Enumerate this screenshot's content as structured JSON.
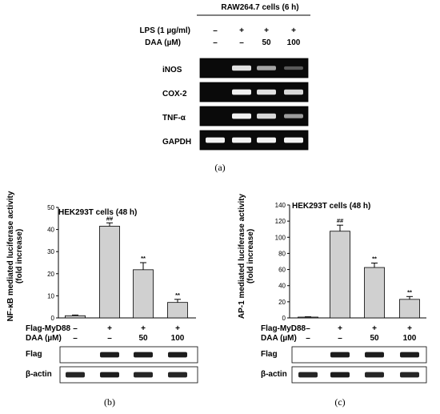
{
  "panel_a": {
    "header": "RAW264.7 cells (6 h)",
    "lps_label": "LPS (1 µg/ml)",
    "daa_label": "DAA (µM)",
    "lps_values": [
      "–",
      "+",
      "+",
      "+"
    ],
    "daa_values": [
      "–",
      "–",
      "50",
      "100"
    ],
    "genes": [
      "iNOS",
      "COX-2",
      "TNF-α",
      "GAPDH"
    ],
    "band_intensity": [
      [
        0.0,
        0.85,
        0.5,
        0.05
      ],
      [
        0.0,
        0.95,
        0.85,
        0.8
      ],
      [
        0.0,
        0.95,
        0.8,
        0.45
      ],
      [
        0.95,
        0.95,
        0.95,
        0.95
      ]
    ],
    "panel_label": "(a)"
  },
  "panel_b": {
    "cells_label": "HEK293T cells (48 h)",
    "ylabel_line1": "NF-κB mediated luciferase activity",
    "ylabel_line2": "(fold increase)",
    "flag_label": "Flag-MyD88",
    "daa_label": "DAA (µM)",
    "flag_values": [
      "–",
      "+",
      "+",
      "+"
    ],
    "daa_values": [
      "–",
      "–",
      "50",
      "100"
    ],
    "blot_labels": [
      "Flag",
      "β-actin"
    ],
    "blot_intensity": [
      [
        0.0,
        0.95,
        0.95,
        0.95
      ],
      [
        0.9,
        0.95,
        0.9,
        0.9
      ]
    ],
    "panel_label": "(b)"
  },
  "panel_c": {
    "cells_label": "HEK293T cells (48 h)",
    "ylabel_line1": "AP-1 mediated luciferase activity",
    "ylabel_line2": "(fold increase)",
    "flag_label": "Flag-MyD88",
    "daa_label": "DAA (µM)",
    "flag_values": [
      "–",
      "+",
      "+",
      "+"
    ],
    "daa_values": [
      "–",
      "–",
      "50",
      "100"
    ],
    "blot_labels": [
      "Flag",
      "β-actin"
    ],
    "blot_intensity": [
      [
        0.0,
        0.95,
        0.95,
        0.95
      ],
      [
        0.9,
        0.95,
        0.9,
        0.9
      ]
    ],
    "panel_label": "(c)"
  },
  "chart_data": [
    {
      "type": "bar",
      "ylim": [
        0,
        50
      ],
      "yticks": [
        0,
        10,
        20,
        30,
        40,
        50
      ],
      "values": [
        1.0,
        41.5,
        21.8,
        7.0
      ],
      "errors": [
        0.3,
        1.5,
        3.2,
        1.4
      ],
      "annotations": [
        "",
        "##",
        "**",
        "**"
      ]
    },
    {
      "type": "bar",
      "ylim": [
        0,
        140
      ],
      "yticks": [
        0,
        20,
        40,
        60,
        80,
        100,
        120,
        140
      ],
      "values": [
        1.0,
        107.5,
        62.5,
        23.0
      ],
      "errors": [
        0.4,
        7.5,
        5.5,
        3.5
      ],
      "annotations": [
        "",
        "##",
        "**",
        "**"
      ]
    }
  ]
}
